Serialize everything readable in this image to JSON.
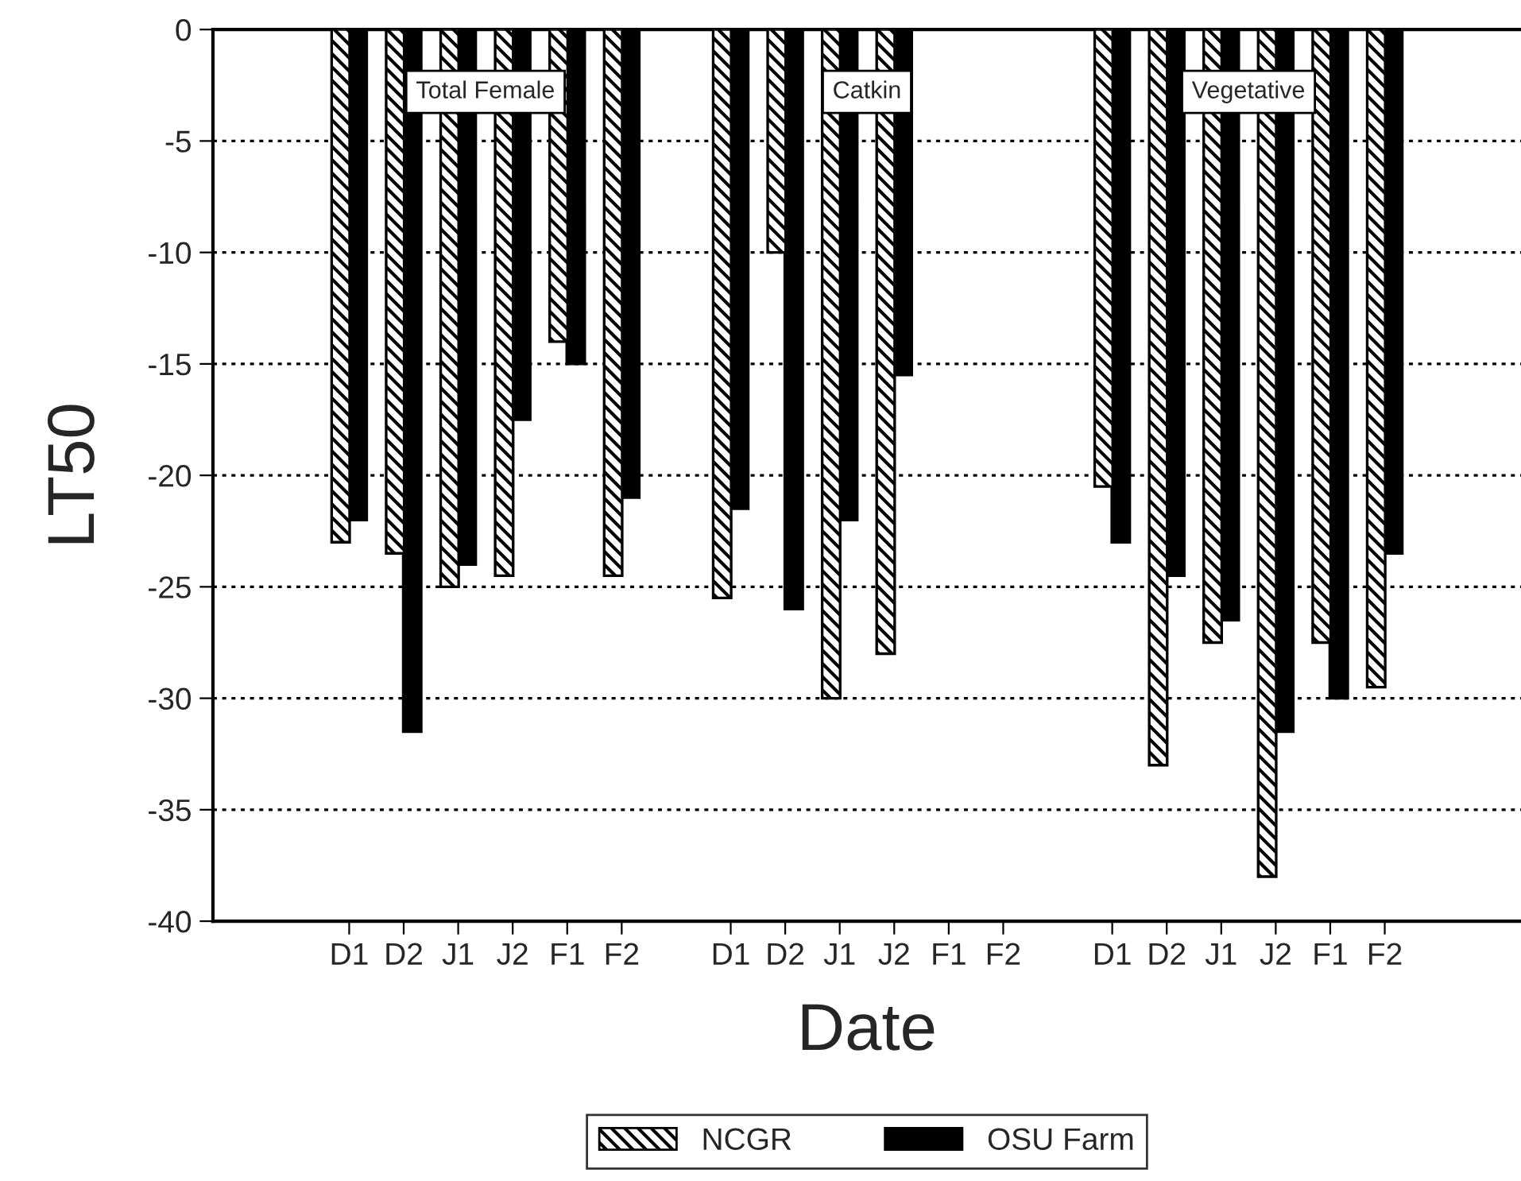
{
  "chart_data": {
    "type": "bar",
    "xlabel": "Date",
    "ylabel": "LT50",
    "categories": [
      null,
      null,
      "D1",
      "D2",
      "J1",
      "J2",
      "F1",
      "F2",
      null,
      "D1",
      "D2",
      "J1",
      "J2",
      "F1",
      "F2",
      null,
      "D1",
      "D2",
      "J1",
      "J2",
      "F1",
      "F2",
      null,
      null
    ],
    "series": [
      {
        "name": "NCGR",
        "color": "#000000",
        "values": [
          null,
          null,
          -23,
          -23.5,
          -25,
          -24.5,
          -14,
          -24.5,
          null,
          -25.5,
          -10,
          -30,
          -28,
          null,
          null,
          null,
          -20.5,
          -33,
          -27.5,
          -38,
          -27.5,
          -29.5,
          null,
          null
        ]
      },
      {
        "name": "OSU Farm",
        "color": "#000000",
        "values": [
          null,
          null,
          -22,
          -31.5,
          -24,
          -17.5,
          -15,
          -21,
          null,
          -21.5,
          -26,
          -22,
          -15.5,
          null,
          null,
          null,
          -23,
          -24.5,
          -26.5,
          -31.5,
          -30,
          -23.5,
          null,
          null
        ]
      }
    ],
    "ylim": [
      -40,
      0
    ],
    "yticks": [
      -40,
      -35,
      -30,
      -25,
      -20,
      -15,
      -10,
      -5,
      0
    ],
    "grid": "y",
    "legend": "bottom",
    "annotations": [
      "Total Female",
      "Catkin",
      "Vegetative"
    ]
  }
}
